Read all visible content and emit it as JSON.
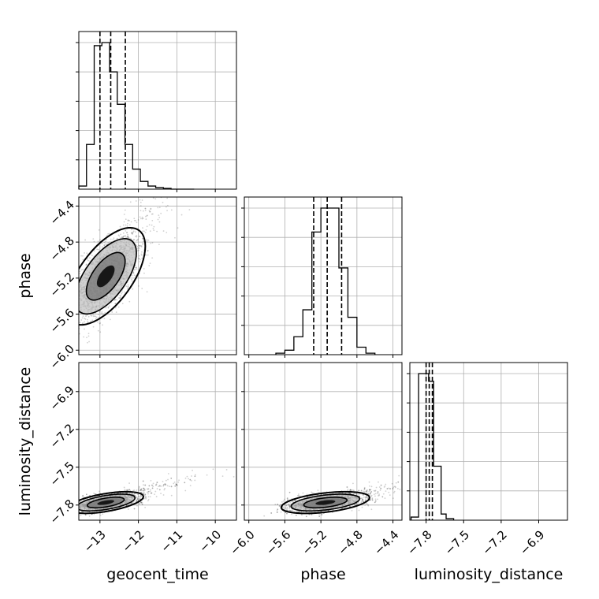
{
  "chart_data": [
    {
      "type": "histogram",
      "panel": "geocent_time-marginal",
      "xlabel": "geocent_time",
      "xlim": [
        -13.55,
        -9.45
      ],
      "x_ticks": [
        -13,
        -12,
        -11,
        -10
      ],
      "x_tick_labels": [
        "−13",
        "−12",
        "−11",
        "−10"
      ],
      "grid": true,
      "bin_edges": [
        -13.55,
        -13.35,
        -13.15,
        -12.95,
        -12.75,
        -12.55,
        -12.35,
        -12.15,
        -11.95,
        -11.75,
        -11.55,
        -11.35,
        -11.15,
        -10.95,
        -10.75,
        -10.55
      ],
      "counts": [
        0.02,
        0.29,
        0.93,
        0.95,
        0.76,
        0.55,
        0.29,
        0.13,
        0.05,
        0.02,
        0.01,
        0.005,
        0,
        0,
        0
      ],
      "quantiles": [
        -13.0,
        -12.72,
        -12.34
      ]
    },
    {
      "type": "histogram",
      "panel": "phase-marginal",
      "xlim": [
        -6.05,
        -4.3
      ],
      "grid": true,
      "bin_edges": [
        -5.7,
        -5.6,
        -5.5,
        -5.4,
        -5.3,
        -5.2,
        -5.1,
        -5.0,
        -4.9,
        -4.8,
        -4.7,
        -4.6
      ],
      "counts": [
        0.01,
        0.03,
        0.12,
        0.3,
        0.82,
        0.98,
        0.98,
        0.58,
        0.25,
        0.05,
        0.01
      ],
      "quantiles": [
        -5.28,
        -5.13,
        -4.97
      ]
    },
    {
      "type": "histogram",
      "panel": "luminosity_distance-marginal",
      "xlim": [
        -7.93,
        -6.67
      ],
      "grid": true,
      "bin_edges": [
        -7.92,
        -7.86,
        -7.82,
        -7.78,
        -7.74,
        -7.68,
        -7.64,
        -7.58
      ],
      "counts": [
        0.02,
        0.95,
        0.95,
        0.9,
        0.35,
        0.04,
        0.01
      ],
      "quantiles": [
        -7.8,
        -7.775,
        -7.75
      ]
    },
    {
      "type": "contour",
      "panel": "geocent_time-vs-phase",
      "xlabel": "",
      "ylabel": "phase",
      "xlim": [
        -13.55,
        -9.45
      ],
      "ylim": [
        -6.05,
        -4.3
      ],
      "y_ticks": [
        -6.0,
        -5.6,
        -5.2,
        -4.8,
        -4.4
      ],
      "y_tick_labels": [
        "−6.0",
        "−5.6",
        "−5.2",
        "−4.8",
        "−4.4"
      ],
      "grid": true,
      "center": [
        -12.85,
        -5.18
      ],
      "spread": [
        0.42,
        0.22
      ],
      "correlation": 0.62
    },
    {
      "type": "contour",
      "panel": "geocent_time-vs-luminosity_distance",
      "xlabel": "geocent_time",
      "ylabel": "luminosity_distance",
      "xlim": [
        -13.55,
        -9.45
      ],
      "ylim": [
        -7.92,
        -6.67
      ],
      "x_ticks": [
        -13,
        -12,
        -11,
        -10
      ],
      "x_tick_labels": [
        "−13",
        "−12",
        "−11",
        "−10"
      ],
      "y_ticks": [
        -7.8,
        -7.5,
        -7.2,
        -6.9
      ],
      "y_tick_labels": [
        "−7.8",
        "−7.5",
        "−7.2",
        "−6.9"
      ],
      "grid": true,
      "center": [
        -12.85,
        -7.78
      ],
      "spread": [
        0.4,
        0.035
      ],
      "correlation": 0.55
    },
    {
      "type": "contour",
      "panel": "phase-vs-luminosity_distance",
      "xlabel": "phase",
      "xlim": [
        -6.05,
        -4.3
      ],
      "ylim": [
        -7.92,
        -6.67
      ],
      "x_ticks": [
        -6.0,
        -5.6,
        -5.2,
        -4.8,
        -4.4
      ],
      "x_tick_labels": [
        "−6.0",
        "−5.6",
        "−5.2",
        "−4.8",
        "−4.4"
      ],
      "grid": true,
      "center": [
        -5.15,
        -7.78
      ],
      "spread": [
        0.2,
        0.035
      ],
      "correlation": 0.45
    },
    {
      "type": "histogram",
      "panel": "luminosity_distance-axis",
      "xlabel": "luminosity_distance",
      "x_ticks": [
        -7.8,
        -7.5,
        -7.2,
        -6.9
      ],
      "x_tick_labels": [
        "−7.8",
        "−7.5",
        "−7.2",
        "−6.9"
      ]
    }
  ]
}
